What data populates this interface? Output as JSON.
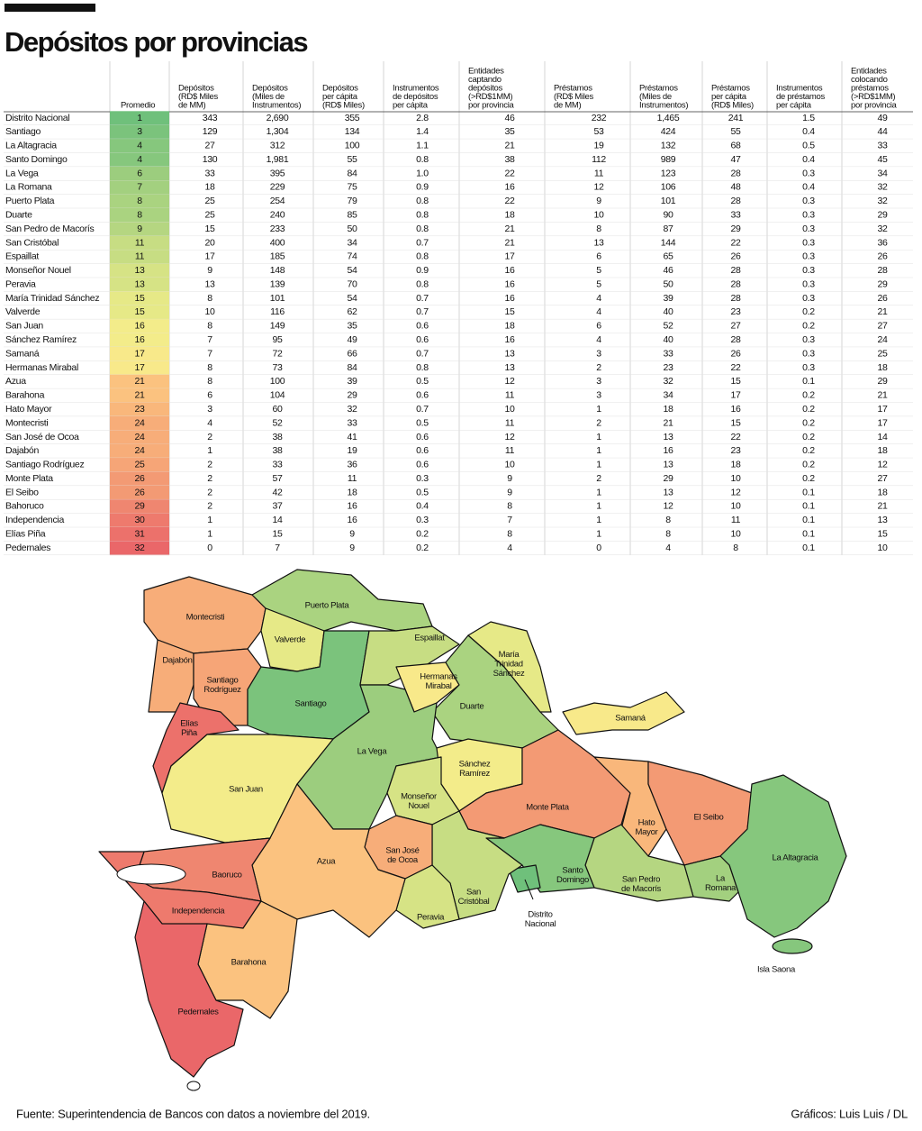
{
  "header": {
    "title": "Depósitos por provincias"
  },
  "table": {
    "columns": [
      [
        "Promedio"
      ],
      [
        "Depósitos",
        "(RD$ Miles",
        "de MM)"
      ],
      [
        "Depósitos",
        "(Miles de",
        "Instrumentos)"
      ],
      [
        "Depósitos",
        "per cápita",
        "(RD$ Miles)"
      ],
      [
        "Instrumentos",
        "de depósitos",
        "per cápita"
      ],
      [
        "Entidades",
        "captando",
        "depósitos",
        "(>RD$1MM)",
        "por provincia"
      ],
      [
        "Préstamos",
        "(RD$ Miles",
        "de MM)"
      ],
      [
        "Préstamos",
        "(Miles de",
        "Instrumentos)"
      ],
      [
        "Préstamos",
        "per cápita",
        "(RD$ Miles)"
      ],
      [
        "Instrumentos",
        "de préstamos",
        "per cápita"
      ],
      [
        "Entidades",
        "colocando",
        "préstamos",
        "(>RD$1MM)",
        "por provincia"
      ]
    ],
    "rows": [
      {
        "cells": [
          "Distrito Nacional",
          "1",
          "343",
          "2,690",
          "355",
          "2.8",
          "46",
          "232",
          "1,465",
          "241",
          "1.5",
          "49"
        ],
        "color": "#6fc07b"
      },
      {
        "cells": [
          "Santiago",
          "3",
          "129",
          "1,304",
          "134",
          "1.4",
          "35",
          "53",
          "424",
          "55",
          "0.4",
          "44"
        ],
        "color": "#7bc37c"
      },
      {
        "cells": [
          "La Altagracia",
          "4",
          "27",
          "312",
          "100",
          "1.1",
          "21",
          "19",
          "132",
          "68",
          "0.5",
          "33"
        ],
        "color": "#86c77d"
      },
      {
        "cells": [
          "Santo Domingo",
          "4",
          "130",
          "1,981",
          "55",
          "0.8",
          "38",
          "112",
          "989",
          "47",
          "0.4",
          "45"
        ],
        "color": "#86c77d"
      },
      {
        "cells": [
          "La Vega",
          "6",
          "33",
          "395",
          "84",
          "1.0",
          "22",
          "11",
          "123",
          "28",
          "0.3",
          "34"
        ],
        "color": "#9ccd7e"
      },
      {
        "cells": [
          "La Romana",
          "7",
          "18",
          "229",
          "75",
          "0.9",
          "16",
          "12",
          "106",
          "48",
          "0.4",
          "32"
        ],
        "color": "#a3d07f"
      },
      {
        "cells": [
          "Puerto Plata",
          "8",
          "25",
          "254",
          "79",
          "0.8",
          "22",
          "9",
          "101",
          "28",
          "0.3",
          "32"
        ],
        "color": "#aad380"
      },
      {
        "cells": [
          "Duarte",
          "8",
          "25",
          "240",
          "85",
          "0.8",
          "18",
          "10",
          "90",
          "33",
          "0.3",
          "29"
        ],
        "color": "#aad380"
      },
      {
        "cells": [
          "San Pedro de Macorís",
          "9",
          "15",
          "233",
          "50",
          "0.8",
          "21",
          "8",
          "87",
          "29",
          "0.3",
          "32"
        ],
        "color": "#b5d681"
      },
      {
        "cells": [
          "San Cristóbal",
          "11",
          "20",
          "400",
          "34",
          "0.7",
          "21",
          "13",
          "144",
          "22",
          "0.3",
          "36"
        ],
        "color": "#c7dd83"
      },
      {
        "cells": [
          "Espaillat",
          "11",
          "17",
          "185",
          "74",
          "0.8",
          "17",
          "6",
          "65",
          "26",
          "0.3",
          "26"
        ],
        "color": "#c7dd83"
      },
      {
        "cells": [
          "Monseñor Nouel",
          "13",
          "9",
          "148",
          "54",
          "0.9",
          "16",
          "5",
          "46",
          "28",
          "0.3",
          "28"
        ],
        "color": "#d6e385"
      },
      {
        "cells": [
          "Peravia",
          "13",
          "13",
          "139",
          "70",
          "0.8",
          "16",
          "5",
          "50",
          "28",
          "0.3",
          "29"
        ],
        "color": "#d6e385"
      },
      {
        "cells": [
          "María Trinidad Sánchez",
          "15",
          "8",
          "101",
          "54",
          "0.7",
          "16",
          "4",
          "39",
          "28",
          "0.3",
          "26"
        ],
        "color": "#e6e987"
      },
      {
        "cells": [
          "Valverde",
          "15",
          "10",
          "116",
          "62",
          "0.7",
          "15",
          "4",
          "40",
          "23",
          "0.2",
          "21"
        ],
        "color": "#e6e987"
      },
      {
        "cells": [
          "San Juan",
          "16",
          "8",
          "149",
          "35",
          "0.6",
          "18",
          "6",
          "52",
          "27",
          "0.2",
          "27"
        ],
        "color": "#f3ec8a"
      },
      {
        "cells": [
          "Sánchez Ramírez",
          "16",
          "7",
          "95",
          "49",
          "0.6",
          "16",
          "4",
          "40",
          "28",
          "0.3",
          "24"
        ],
        "color": "#f3ec8a"
      },
      {
        "cells": [
          "Samaná",
          "17",
          "7",
          "72",
          "66",
          "0.7",
          "13",
          "3",
          "33",
          "26",
          "0.3",
          "25"
        ],
        "color": "#f8e98a"
      },
      {
        "cells": [
          "Hermanas Mirabal",
          "17",
          "8",
          "73",
          "84",
          "0.8",
          "13",
          "2",
          "23",
          "22",
          "0.3",
          "18"
        ],
        "color": "#f8e98a"
      },
      {
        "cells": [
          "Azua",
          "21",
          "8",
          "100",
          "39",
          "0.5",
          "12",
          "3",
          "32",
          "15",
          "0.1",
          "29"
        ],
        "color": "#fbc27f"
      },
      {
        "cells": [
          "Barahona",
          "21",
          "6",
          "104",
          "29",
          "0.6",
          "11",
          "3",
          "34",
          "17",
          "0.2",
          "21"
        ],
        "color": "#fbc27f"
      },
      {
        "cells": [
          "Hato Mayor",
          "23",
          "3",
          "60",
          "32",
          "0.7",
          "10",
          "1",
          "18",
          "16",
          "0.2",
          "17"
        ],
        "color": "#f9b77b"
      },
      {
        "cells": [
          "Montecristi",
          "24",
          "4",
          "52",
          "33",
          "0.5",
          "11",
          "2",
          "21",
          "15",
          "0.2",
          "17"
        ],
        "color": "#f7ad79"
      },
      {
        "cells": [
          "San José de Ocoa",
          "24",
          "2",
          "38",
          "41",
          "0.6",
          "12",
          "1",
          "13",
          "22",
          "0.2",
          "14"
        ],
        "color": "#f7ad79"
      },
      {
        "cells": [
          "Dajabón",
          "24",
          "1",
          "38",
          "19",
          "0.6",
          "11",
          "1",
          "16",
          "23",
          "0.2",
          "18"
        ],
        "color": "#f7ad79"
      },
      {
        "cells": [
          "Santiago Rodríguez",
          "25",
          "2",
          "33",
          "36",
          "0.6",
          "10",
          "1",
          "13",
          "18",
          "0.2",
          "12"
        ],
        "color": "#f6a577"
      },
      {
        "cells": [
          "Monte Plata",
          "26",
          "2",
          "57",
          "11",
          "0.3",
          "9",
          "2",
          "29",
          "10",
          "0.2",
          "27"
        ],
        "color": "#f39a74"
      },
      {
        "cells": [
          "El Seibo",
          "26",
          "2",
          "42",
          "18",
          "0.5",
          "9",
          "1",
          "13",
          "12",
          "0.1",
          "18"
        ],
        "color": "#f39a74"
      },
      {
        "cells": [
          "Bahoruco",
          "29",
          "2",
          "37",
          "16",
          "0.4",
          "8",
          "1",
          "12",
          "10",
          "0.1",
          "21"
        ],
        "color": "#ef8670"
      },
      {
        "cells": [
          "Independencia",
          "30",
          "1",
          "14",
          "16",
          "0.3",
          "7",
          "1",
          "8",
          "11",
          "0.1",
          "13"
        ],
        "color": "#ee7a6d"
      },
      {
        "cells": [
          "Elías Piña",
          "31",
          "1",
          "15",
          "9",
          "0.2",
          "8",
          "1",
          "8",
          "10",
          "0.1",
          "15"
        ],
        "color": "#ec716b"
      },
      {
        "cells": [
          "Pedernales",
          "32",
          "0",
          "7",
          "9",
          "0.2",
          "4",
          "0",
          "4",
          "8",
          "0.1",
          "10"
        ],
        "color": "#ea6769"
      }
    ]
  },
  "map": {
    "labels": [
      [
        "Montecristi"
      ],
      [
        "Puerto Plata"
      ],
      [
        "Valverde"
      ],
      [
        "Espaillat"
      ],
      [
        "Dajabón"
      ],
      [
        "Santiago",
        "Rodríguez"
      ],
      [
        "Hermanas",
        "Mirabal"
      ],
      [
        "María",
        "Trinidad",
        "Sánchez"
      ],
      [
        "Santiago"
      ],
      [
        "Duarte"
      ],
      [
        "Samaná"
      ],
      [
        "Elías",
        "Piña"
      ],
      [
        "La Vega"
      ],
      [
        "Sánchez",
        "Ramírez"
      ],
      [
        "San Juan"
      ],
      [
        "Monseñor",
        "Nouel"
      ],
      [
        "Monte Plata"
      ],
      [
        "Hato",
        "Mayor"
      ],
      [
        "El Seibo"
      ],
      [
        "San José",
        "de Ocoa"
      ],
      [
        "Azua"
      ],
      [
        "Baoruco"
      ],
      [
        "Santo",
        "Domingo"
      ],
      [
        "San Pedro",
        "de Macorís"
      ],
      [
        "La",
        "Romana"
      ],
      [
        "La Altagracia"
      ],
      [
        "San",
        "Cristóbal"
      ],
      [
        "Distrito",
        "Nacional"
      ],
      [
        "Independencia"
      ],
      [
        "Peravia"
      ],
      [
        "Barahona"
      ],
      [
        "Pedernales"
      ],
      [
        "Isla Saona"
      ]
    ]
  },
  "footer": {
    "source": "Fuente:  Superintendencia de Bancos con datos a noviembre del 2019.",
    "credit": "Gráficos: Luis Luis / DL"
  }
}
